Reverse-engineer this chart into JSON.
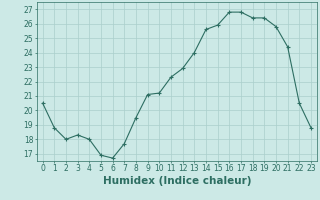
{
  "x": [
    0,
    1,
    2,
    3,
    4,
    5,
    6,
    7,
    8,
    9,
    10,
    11,
    12,
    13,
    14,
    15,
    16,
    17,
    18,
    19,
    20,
    21,
    22,
    23
  ],
  "y": [
    20.5,
    18.8,
    18.0,
    18.3,
    18.0,
    16.9,
    16.7,
    17.7,
    19.5,
    21.1,
    21.2,
    22.3,
    22.9,
    24.0,
    25.6,
    25.9,
    26.8,
    26.8,
    26.4,
    26.4,
    25.8,
    24.4,
    20.5,
    18.8
  ],
  "xlabel": "Humidex (Indice chaleur)",
  "xlim": [
    -0.5,
    23.5
  ],
  "ylim": [
    16.5,
    27.5
  ],
  "yticks": [
    17,
    18,
    19,
    20,
    21,
    22,
    23,
    24,
    25,
    26,
    27
  ],
  "xticks": [
    0,
    1,
    2,
    3,
    4,
    5,
    6,
    7,
    8,
    9,
    10,
    11,
    12,
    13,
    14,
    15,
    16,
    17,
    18,
    19,
    20,
    21,
    22,
    23
  ],
  "line_color": "#2d6e62",
  "bg_color": "#cce9e6",
  "grid_color": "#aacfcc",
  "tick_label_color": "#2d6e62",
  "xlabel_color": "#2d6e62",
  "tick_fontsize": 5.5,
  "xlabel_fontsize": 7.5
}
